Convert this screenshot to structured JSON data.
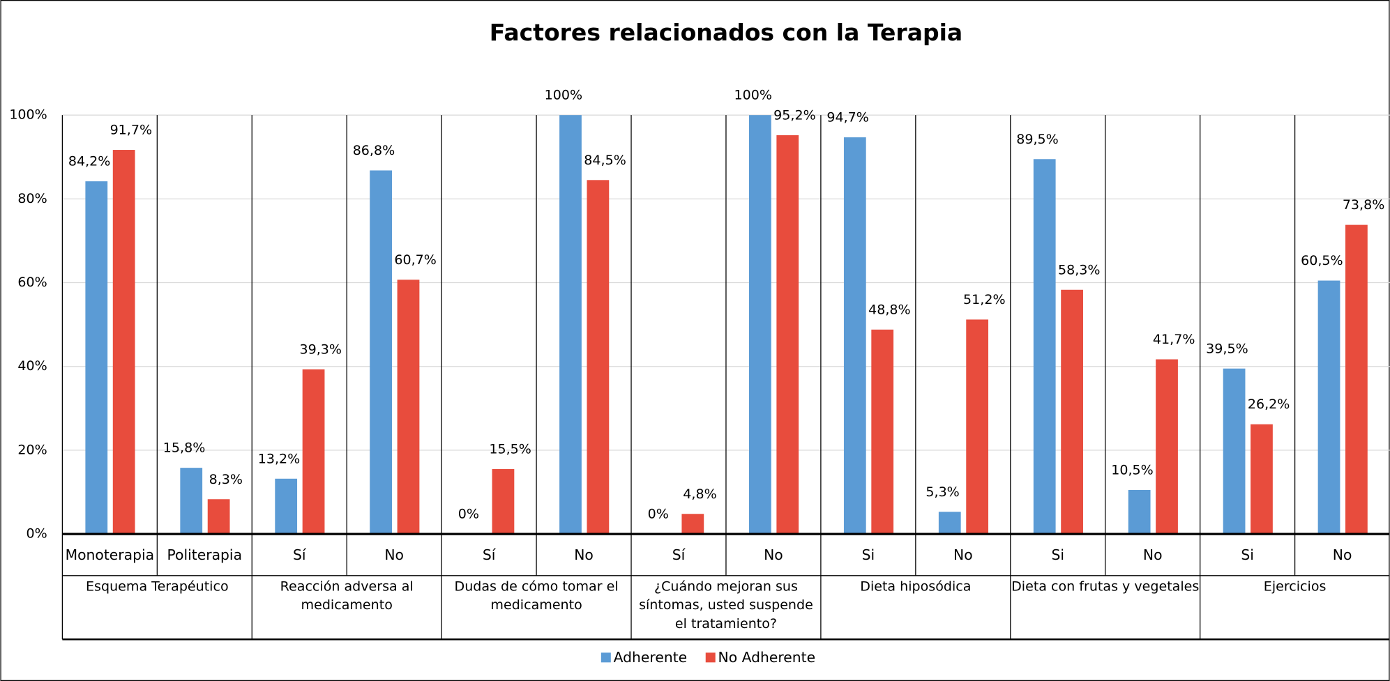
{
  "chart_data": {
    "type": "bar",
    "title": "Factores relacionados con la Terapia",
    "categories": [
      "Monoterapia",
      "Politerapia",
      "Sí",
      "No",
      "Sí",
      "No",
      "Sí",
      "No",
      "Si",
      "No",
      "Si",
      "No",
      "Si",
      "No"
    ],
    "groups": [
      "Esquema Terapéutico",
      "Reacción adversa al medicamento",
      "Dudas de cómo tomar el medicamento",
      "¿Cuándo mejoran sus síntomas, usted suspende el tratamiento?",
      "Dieta hiposódica",
      "Dieta con frutas y vegetales",
      "Ejercicios"
    ],
    "series": [
      {
        "name": "Adherente",
        "color": "#5b9bd5",
        "values": [
          84.2,
          15.8,
          13.2,
          86.8,
          0,
          100,
          0,
          100,
          94.7,
          5.3,
          89.5,
          10.5,
          39.5,
          60.5
        ],
        "value_labels": [
          "84,2%",
          "15,8%",
          "13,2%",
          "86,8%",
          "0%",
          "100%",
          "0%",
          "100%",
          "94,7%",
          "5,3%",
          "89,5%",
          "10,5%",
          "39,5%",
          "60,5%"
        ]
      },
      {
        "name": "No Adherente",
        "color": "#e84c3d",
        "values": [
          91.7,
          8.3,
          39.3,
          60.7,
          15.5,
          84.5,
          4.8,
          95.2,
          48.8,
          51.2,
          58.3,
          41.7,
          26.2,
          73.8
        ],
        "value_labels": [
          "91,7%",
          "8,3%",
          "39,3%",
          "60,7%",
          "15,5%",
          "84,5%",
          "4,8%",
          "95,2%",
          "48,8%",
          "51,2%",
          "58,3%",
          "41,7%",
          "26,2%",
          "73,8%"
        ]
      }
    ],
    "ylim": [
      0,
      100
    ],
    "yticks": [
      {
        "value": 0,
        "label": "0%"
      },
      {
        "value": 20,
        "label": "20%"
      },
      {
        "value": 40,
        "label": "40%"
      },
      {
        "value": 60,
        "label": "60%"
      },
      {
        "value": 80,
        "label": "80%"
      },
      {
        "value": 100,
        "label": "100%"
      }
    ],
    "grid": true,
    "legend": "bottom"
  }
}
